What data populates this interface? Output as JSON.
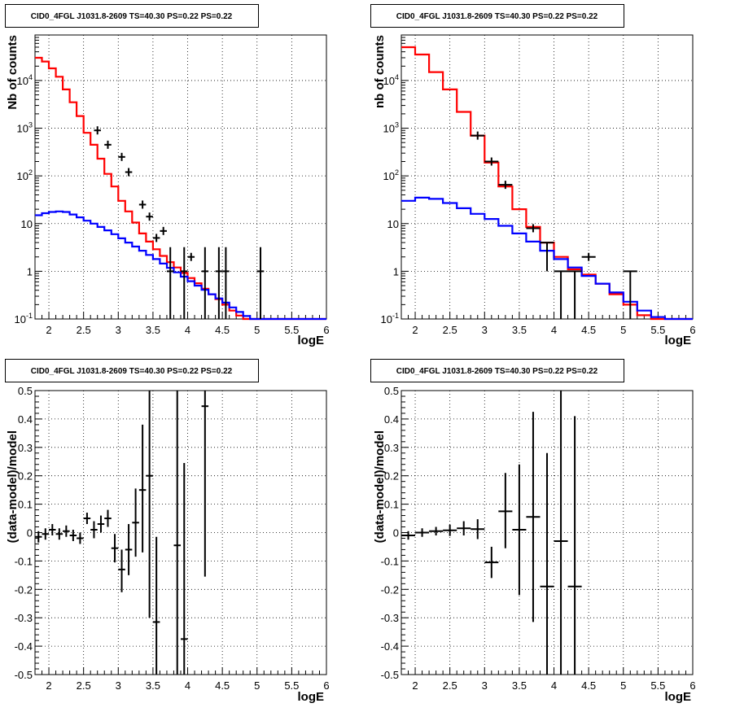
{
  "chart_data": [
    {
      "type": "line",
      "panel": "top-left",
      "title": "CID0_4FGL J1031.8-2609 TS=40.30 PS=0.22 PS=0.22",
      "xlabel": "logE",
      "ylabel": "Nb of counts",
      "xlim": [
        1.8,
        6
      ],
      "ylim": [
        0.1,
        90000
      ],
      "yscale": "log",
      "grid": true,
      "x_ticks": [
        "2",
        "2.5",
        "3",
        "3.5",
        "4",
        "4.5",
        "5",
        "5.5",
        "6"
      ],
      "y_ticks": [
        "10^{-1}",
        "1",
        "10",
        "10^{2}",
        "10^{3}",
        "10^{4}"
      ],
      "series": [
        {
          "color": "#ff0000",
          "style": "step",
          "edges": [
            1.8,
            1.9,
            2.0,
            2.1,
            2.2,
            2.3,
            2.4,
            2.5,
            2.6,
            2.7,
            2.8,
            2.9,
            3.0,
            3.1,
            3.2,
            3.3,
            3.4,
            3.5,
            3.6,
            3.7,
            3.8,
            3.9,
            4.0,
            4.1,
            4.2,
            4.3,
            4.4,
            4.5,
            4.6,
            4.7,
            4.8,
            4.9,
            5.0,
            5.1,
            5.2,
            5.3,
            5.4,
            5.5,
            5.6,
            5.7,
            5.8,
            5.9,
            6.0
          ],
          "values": [
            30000,
            25000,
            18000,
            12000,
            6500,
            3500,
            1800,
            800,
            450,
            230,
            110,
            60,
            30,
            18,
            10.5,
            6.2,
            4.2,
            2.9,
            2.1,
            1.55,
            1.2,
            0.92,
            0.72,
            0.56,
            0.43,
            0.33,
            0.26,
            0.2,
            0.15,
            0.118,
            0.1,
            0.1,
            0.1,
            0.1,
            0.1,
            0.1,
            0.1,
            0.1,
            0.1,
            0.1,
            0.1,
            0.1
          ]
        },
        {
          "color": "#0000ff",
          "style": "step",
          "edges": [
            1.8,
            1.9,
            2.0,
            2.1,
            2.2,
            2.3,
            2.4,
            2.5,
            2.6,
            2.7,
            2.8,
            2.9,
            3.0,
            3.1,
            3.2,
            3.3,
            3.4,
            3.5,
            3.6,
            3.7,
            3.8,
            3.9,
            4.0,
            4.1,
            4.2,
            4.3,
            4.4,
            4.5,
            4.6,
            4.7,
            4.8,
            4.9,
            5.0,
            5.1,
            5.2,
            5.3,
            5.4,
            5.5,
            5.6,
            5.7,
            5.8,
            5.9,
            6.0
          ],
          "values": [
            15,
            16.5,
            17.5,
            18,
            17.5,
            15.5,
            13.5,
            11.5,
            10,
            8.5,
            7.2,
            6,
            4.9,
            4,
            3.3,
            2.7,
            2.2,
            1.8,
            1.45,
            1.18,
            0.95,
            0.77,
            0.62,
            0.5,
            0.41,
            0.33,
            0.27,
            0.22,
            0.175,
            0.14,
            0.115,
            0.1,
            0.1,
            0.1,
            0.1,
            0.1,
            0.1,
            0.1,
            0.1,
            0.1,
            0.1,
            0.1
          ]
        },
        {
          "color": "#000000",
          "style": "errorbar",
          "x": [
            2.7,
            2.85,
            3.05,
            3.15,
            3.35,
            3.45,
            3.55,
            3.65,
            3.75,
            3.95,
            4.05,
            4.25,
            4.45,
            4.55,
            5.05
          ],
          "y": [
            900,
            450,
            250,
            120,
            25,
            14,
            5,
            7,
            1,
            1,
            2,
            1,
            1,
            1,
            1
          ],
          "xerr": 0.05,
          "yerr_lo": [
            0,
            0,
            0,
            0,
            0,
            0,
            0,
            0,
            0.99,
            0.99,
            0,
            0.99,
            0.99,
            0.99,
            0.99
          ],
          "yerr_hi": [
            0,
            0,
            0,
            0,
            0,
            0,
            0,
            0,
            2.2,
            2.2,
            0,
            2.2,
            2.2,
            2.2,
            2.2
          ]
        }
      ]
    },
    {
      "type": "line",
      "panel": "top-right",
      "title": "CID0_4FGL J1031.8-2609 TS=40.30 PS=0.22 PS=0.22",
      "xlabel": "logE",
      "ylabel": "nb of counts",
      "xlim": [
        1.8,
        6
      ],
      "ylim": [
        0.1,
        90000
      ],
      "yscale": "log",
      "grid": true,
      "x_ticks": [
        "2",
        "2.5",
        "3",
        "3.5",
        "4",
        "4.5",
        "5",
        "5.5",
        "6"
      ],
      "y_ticks": [
        "10^{-1}",
        "1",
        "10",
        "10^{2}",
        "10^{3}",
        "10^{4}"
      ],
      "series": [
        {
          "color": "#ff0000",
          "style": "step",
          "edges": [
            1.8,
            2.0,
            2.2,
            2.4,
            2.6,
            2.8,
            3.0,
            3.2,
            3.4,
            3.6,
            3.8,
            4.0,
            4.2,
            4.4,
            4.6,
            4.8,
            5.0,
            5.2,
            5.4,
            5.6,
            5.8,
            6.0
          ],
          "values": [
            50000,
            35000,
            15000,
            6500,
            2200,
            700,
            190,
            60,
            20,
            8.5,
            4,
            2,
            1.1,
            0.85,
            0.55,
            0.33,
            0.2,
            0.12,
            0.1,
            0.1,
            0.1
          ]
        },
        {
          "color": "#0000ff",
          "style": "step",
          "edges": [
            1.8,
            2.0,
            2.2,
            2.4,
            2.6,
            2.8,
            3.0,
            3.2,
            3.4,
            3.6,
            3.8,
            4.0,
            4.2,
            4.4,
            4.6,
            4.8,
            5.0,
            5.2,
            5.4,
            5.6,
            5.8,
            6.0
          ],
          "values": [
            30,
            35,
            33,
            27,
            21,
            16,
            12.5,
            9,
            6.2,
            4.2,
            2.7,
            1.8,
            1.2,
            0.8,
            0.55,
            0.36,
            0.23,
            0.15,
            0.11,
            0.1,
            0.1
          ]
        },
        {
          "color": "#000000",
          "style": "errorbar",
          "x": [
            2.9,
            3.1,
            3.3,
            3.7,
            3.9,
            4.1,
            4.3,
            4.5,
            5.1
          ],
          "y": [
            700,
            200,
            65,
            8,
            4,
            1,
            1,
            2,
            1
          ],
          "xerr": 0.1,
          "yerr_lo": [
            0,
            0,
            0,
            0,
            3,
            0.99,
            0.99,
            0,
            0.99
          ],
          "yerr_hi": [
            0,
            0,
            0,
            0,
            0,
            0,
            0,
            0,
            0
          ]
        }
      ]
    },
    {
      "type": "scatter",
      "panel": "bottom-left",
      "title": "CID0_4FGL J1031.8-2609 TS=40.30 PS=0.22 PS=0.22",
      "xlabel": "logE",
      "ylabel": "(data-model)/model",
      "xlim": [
        1.8,
        6
      ],
      "ylim": [
        -0.5,
        0.5
      ],
      "grid": true,
      "x_ticks": [
        "2",
        "2.5",
        "3",
        "3.5",
        "4",
        "4.5",
        "5",
        "5.5",
        "6"
      ],
      "y_ticks": [
        "-0.5",
        "-0.4",
        "-0.3",
        "-0.2",
        "-0.1",
        "0",
        "0.1",
        "0.2",
        "0.3",
        "0.4",
        "0.5"
      ],
      "series": [
        {
          "color": "#000000",
          "style": "errorbar",
          "x": [
            1.85,
            1.95,
            2.05,
            2.15,
            2.25,
            2.35,
            2.45,
            2.55,
            2.65,
            2.75,
            2.85,
            2.95,
            3.05,
            3.15,
            3.25,
            3.35,
            3.45,
            3.55,
            3.85,
            3.95,
            4.25
          ],
          "y": [
            -0.015,
            -0.005,
            0.01,
            -0.005,
            0.005,
            -0.01,
            -0.02,
            0.05,
            0.01,
            0.03,
            0.05,
            -0.055,
            -0.13,
            -0.06,
            0.035,
            0.15,
            0.2,
            -0.315,
            -0.045,
            -0.375,
            0.445
          ],
          "xerr": 0.05,
          "yerr_lo": [
            0.02,
            0.02,
            0.02,
            0.02,
            0.02,
            0.02,
            0.02,
            0.02,
            0.03,
            0.03,
            0.03,
            0.05,
            0.08,
            0.09,
            0.12,
            0.22,
            0.5,
            0.3,
            0.6,
            0.2,
            0.6
          ],
          "yerr_hi": [
            0.02,
            0.02,
            0.02,
            0.02,
            0.02,
            0.02,
            0.02,
            0.02,
            0.03,
            0.03,
            0.03,
            0.05,
            0.07,
            0.09,
            0.12,
            0.23,
            0.6,
            0.3,
            0.6,
            0.62,
            0.6
          ]
        }
      ]
    },
    {
      "type": "scatter",
      "panel": "bottom-right",
      "title": "CID0_4FGL J1031.8-2609 TS=40.30 PS=0.22 PS=0.22",
      "xlabel": "logE",
      "ylabel": "(data-model)/model",
      "xlim": [
        1.8,
        6
      ],
      "ylim": [
        -0.5,
        0.5
      ],
      "grid": true,
      "x_ticks": [
        "2",
        "2.5",
        "3",
        "3.5",
        "4",
        "4.5",
        "5",
        "5.5",
        "6"
      ],
      "y_ticks": [
        "-0.5",
        "-0.4",
        "-0.3",
        "-0.2",
        "-0.1",
        "0",
        "0.1",
        "0.2",
        "0.3",
        "0.4",
        "0.5"
      ],
      "series": [
        {
          "color": "#000000",
          "style": "errorbar",
          "x": [
            1.9,
            2.1,
            2.3,
            2.5,
            2.7,
            2.9,
            3.1,
            3.3,
            3.5,
            3.7,
            3.9,
            4.1,
            4.3
          ],
          "y": [
            -0.01,
            0.0,
            0.005,
            0.008,
            0.015,
            0.012,
            -0.105,
            0.075,
            0.01,
            0.055,
            -0.19,
            -0.03,
            -0.19
          ],
          "xerr": 0.1,
          "yerr_lo": [
            0.015,
            0.015,
            0.015,
            0.02,
            0.025,
            0.035,
            0.055,
            0.13,
            0.23,
            0.37,
            0.5,
            0.5,
            0.5
          ],
          "yerr_hi": [
            0.015,
            0.015,
            0.015,
            0.02,
            0.025,
            0.035,
            0.055,
            0.135,
            0.23,
            0.37,
            0.47,
            0.6,
            0.6
          ]
        }
      ]
    }
  ]
}
